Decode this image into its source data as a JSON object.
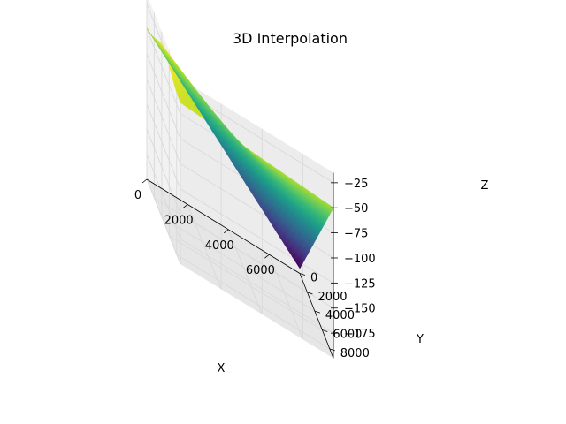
{
  "chart_data": {
    "type": "surface",
    "title": "3D Interpolation",
    "xlabel": "X",
    "ylabel": "Y",
    "zlabel": "Z",
    "colormap": "viridis",
    "grid": true,
    "x_ticks": [
      "0",
      "2000",
      "4000",
      "6000"
    ],
    "y_ticks": [
      "0",
      "2000",
      "4000",
      "6000",
      "8000"
    ],
    "z_ticks": [
      "−25",
      "−50",
      "−75",
      "−100",
      "−125",
      "−150",
      "−175"
    ],
    "xlim": [
      0,
      7500
    ],
    "ylim": [
      0,
      9000
    ],
    "zlim": [
      -200,
      -15
    ],
    "surface_corners": [
      {
        "x": 0,
        "y": 0,
        "z": -50
      },
      {
        "x": 0,
        "y": 9000,
        "z": -40
      },
      {
        "x": 7500,
        "y": 0,
        "z": -195
      },
      {
        "x": 7500,
        "y": 9000,
        "z": -50
      }
    ],
    "surface_peak": {
      "x": 0,
      "y": 4500,
      "z": -27
    },
    "grid_resolution": 40
  }
}
